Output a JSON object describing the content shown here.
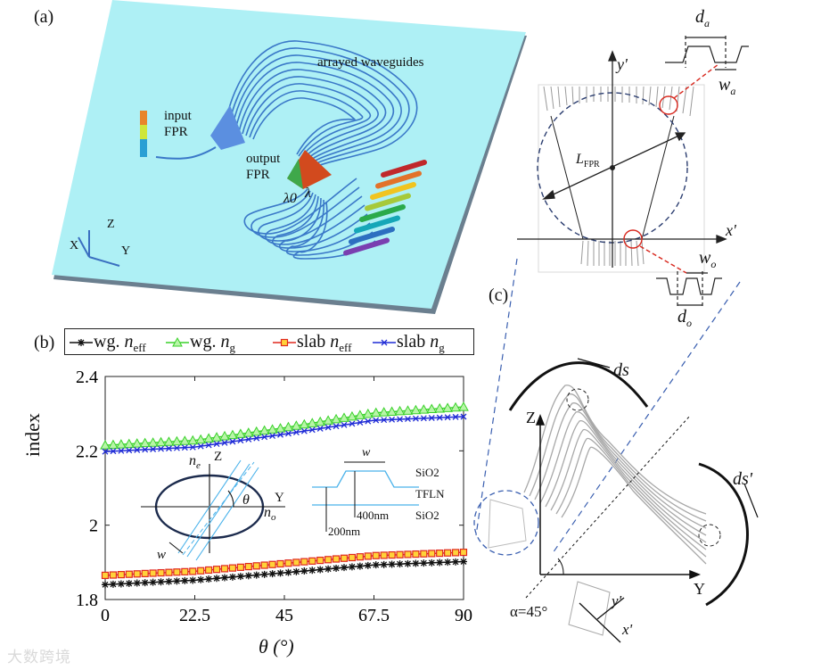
{
  "panels": {
    "a": {
      "label": "(a)",
      "texts": {
        "arrayed": "arrayed waveguides",
        "input1": "input",
        "input2": "FPR",
        "output1": "output",
        "output2": "FPR",
        "lambda0": "λ0",
        "lambda": "λ",
        "axis_z": "Z",
        "axis_x": "X",
        "axis_y": "Y"
      },
      "colors": {
        "chip": "#aef0f5",
        "chip_side": "#6b7f8f",
        "waveguide": "#3a78c8"
      },
      "output_bar_colors": [
        "#c0282b",
        "#e2722a",
        "#f0c420",
        "#a6c93a",
        "#2aaa4a",
        "#15a7b8",
        "#2d6fc0",
        "#7a3fb0"
      ]
    },
    "b": {
      "label": "(b)",
      "legend": [
        {
          "name": "wg. n_eff",
          "prefix": "wg. ",
          "sym": "n",
          "sub": "eff",
          "color": "#111111",
          "marker": "star"
        },
        {
          "name": "wg. n_g",
          "prefix": "wg. ",
          "sym": "n",
          "sub": "g",
          "color": "#3ad12a",
          "marker": "triangle"
        },
        {
          "name": "slab n_eff",
          "prefix": "slab ",
          "sym": "n",
          "sub": "eff",
          "color": "#e0281e",
          "marker": "square"
        },
        {
          "name": "slab n_g",
          "prefix": "slab ",
          "sym": "n",
          "sub": "g",
          "color": "#1f2bd6",
          "marker": "x"
        }
      ],
      "inset": {
        "ne": "n",
        "ne_sub": "e",
        "no": "n",
        "no_sub": "o",
        "z": "Z",
        "y": "Y",
        "theta": "θ",
        "w_left": "w",
        "w_top": "w",
        "sio2_top": "SiO2",
        "tfln": "TFLN",
        "sio2_bottom": "SiO2",
        "thick400": "400nm",
        "thick200": "200nm"
      }
    },
    "c": {
      "label": "(c)",
      "texts": {
        "ds": "ds",
        "ds_prime": "ds'",
        "z": "Z",
        "y": "Y",
        "alpha": "α=45°",
        "y_prime": "y'",
        "x_prime": "x'"
      }
    },
    "fpr": {
      "x_prime": "x'",
      "y_prime": "y'",
      "L": "L",
      "L_sub": "FPR",
      "da": "d",
      "da_sub": "a",
      "wa": "w",
      "wa_sub": "a",
      "wo": "w",
      "wo_sub": "o",
      "do": "d",
      "do_sub": "o"
    }
  },
  "chart_data": {
    "type": "line",
    "title": "",
    "xlabel": "θ (°)",
    "ylabel": "index",
    "xlim": [
      0,
      90
    ],
    "ylim": [
      1.8,
      2.4
    ],
    "xticks": [
      "0",
      "22.5",
      "45",
      "67.5",
      "90"
    ],
    "yticks": [
      "1.8",
      "2",
      "2.2",
      "2.4"
    ],
    "grid": false,
    "legend_position": "top",
    "x": [
      0,
      22.5,
      45,
      67.5,
      90
    ],
    "series": [
      {
        "name": "wg. n_eff",
        "color": "#111111",
        "marker": "star",
        "values": [
          1.84,
          1.852,
          1.872,
          1.893,
          1.902
        ]
      },
      {
        "name": "wg. n_g",
        "color": "#3ad12a",
        "marker": "triangle",
        "values": [
          2.215,
          2.228,
          2.262,
          2.302,
          2.318
        ]
      },
      {
        "name": "slab n_eff",
        "color": "#e0281e",
        "marker": "square",
        "values": [
          1.865,
          1.876,
          1.897,
          1.918,
          1.927
        ]
      },
      {
        "name": "slab n_g",
        "color": "#1f2bd6",
        "marker": "x",
        "values": [
          2.198,
          2.21,
          2.245,
          2.282,
          2.292
        ]
      }
    ]
  },
  "watermark": "大数跨境"
}
